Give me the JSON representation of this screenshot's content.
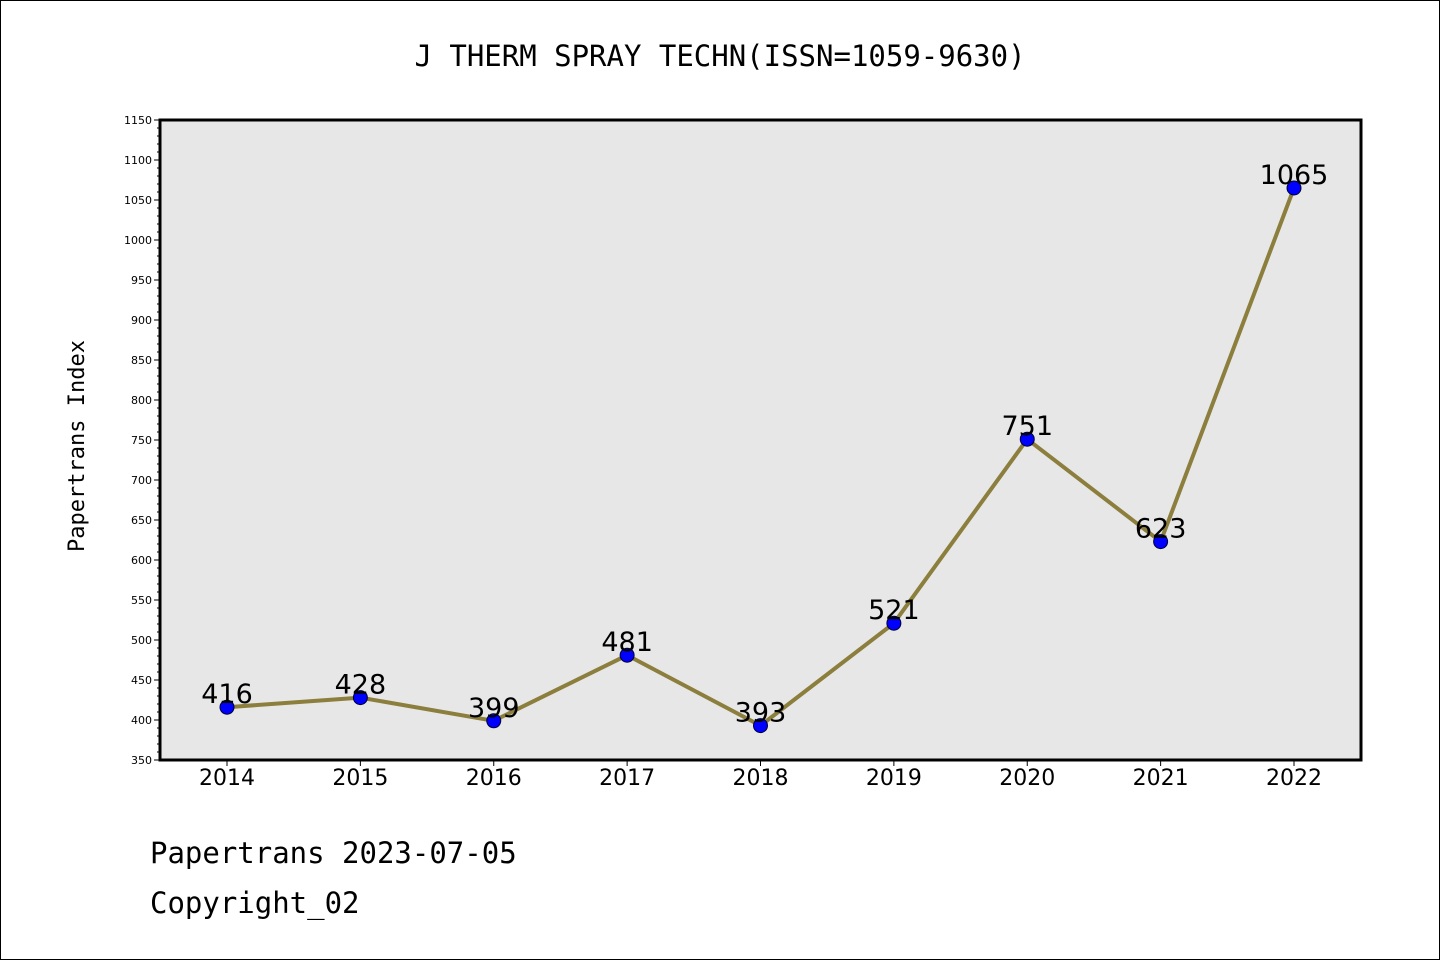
{
  "chart_data": {
    "type": "line",
    "title": "J THERM SPRAY TECHN(ISSN=1059-9630)",
    "xlabel": "",
    "ylabel": "Papertrans Index",
    "categories": [
      "2014",
      "2015",
      "2016",
      "2017",
      "2018",
      "2019",
      "2020",
      "2021",
      "2022"
    ],
    "series": [
      {
        "values": [
          416,
          428,
          399,
          481,
          393,
          521,
          751,
          623,
          1065
        ],
        "data_labels": [
          "416",
          "428",
          "399",
          "481",
          "393",
          "521",
          "751",
          "623",
          "1065"
        ],
        "line_color": "#8c7e3c",
        "marker_color": "#0000ff"
      }
    ],
    "ylim": [
      350,
      1150
    ],
    "yticks": [
      "350",
      "400",
      "450",
      "500",
      "550",
      "600",
      "650",
      "700",
      "750",
      "800",
      "850",
      "900",
      "950",
      "1000",
      "1050",
      "1100",
      "1150"
    ],
    "grid": false,
    "plot_background": "#e7e7e7"
  },
  "footer": {
    "date_line": "Papertrans 2023-07-05",
    "copyright_line": "Copyright_02"
  }
}
